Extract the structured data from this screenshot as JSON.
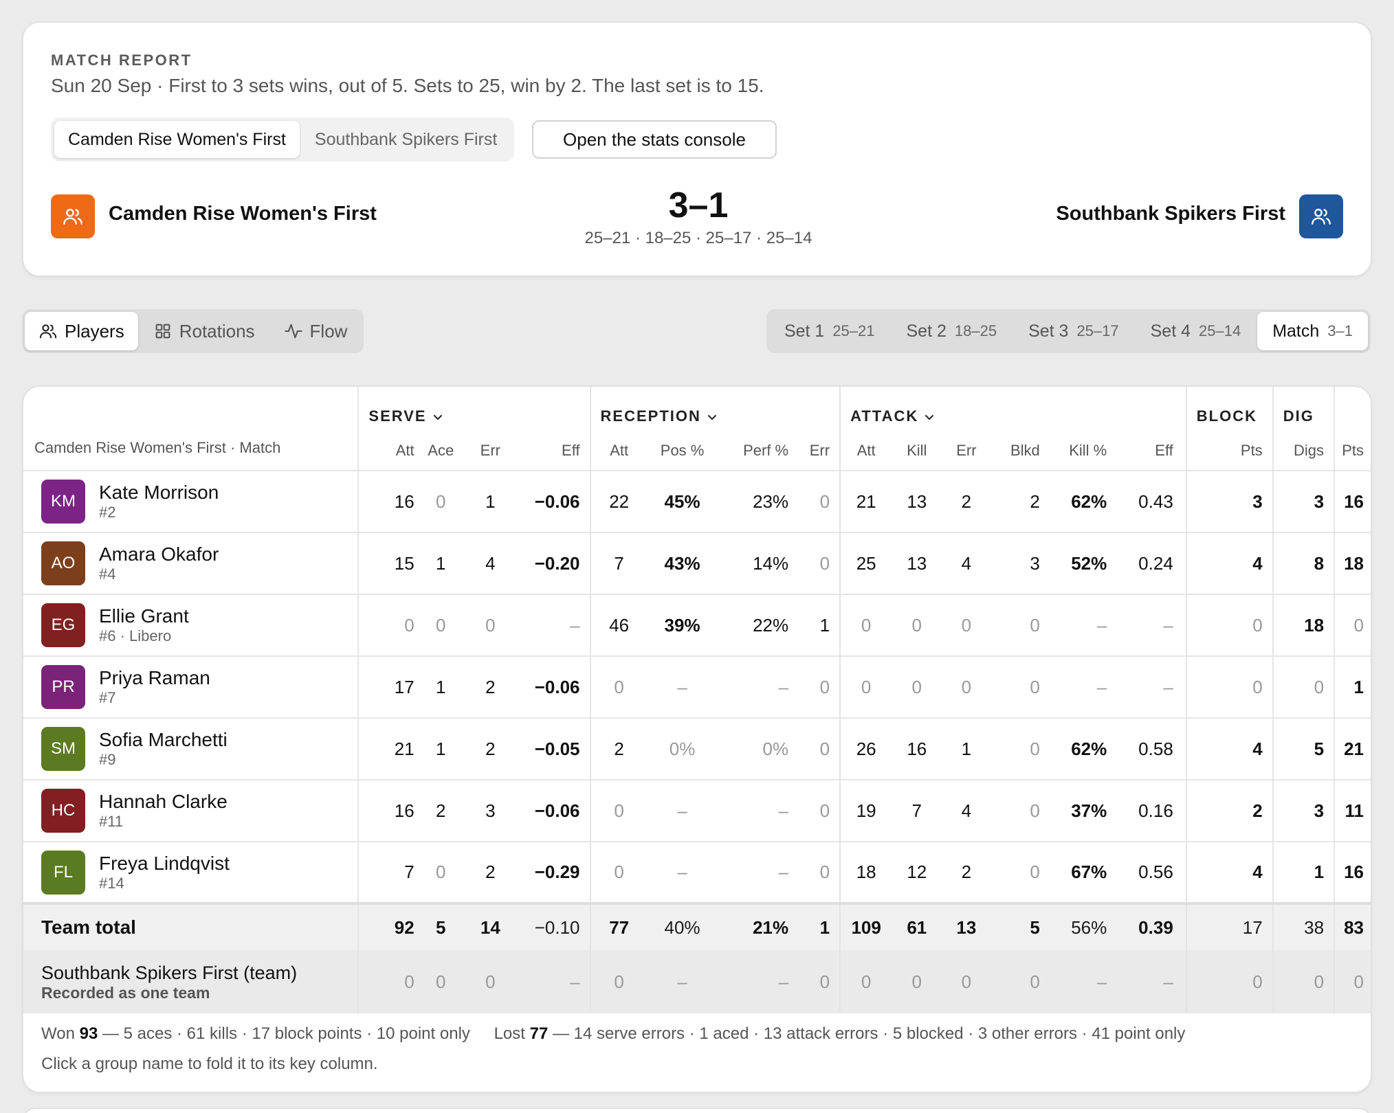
{
  "header": {
    "eyebrow": "MATCH REPORT",
    "subtitle": "Sun 20 Sep · First to 3 sets wins, out of 5. Sets to 25, win by 2. The last set is to 15.",
    "team_toggle": [
      "Camden Rise Women's First",
      "Southbank Spikers First"
    ],
    "console_button": "Open the stats console",
    "home_team": "Camden Rise Women's First",
    "away_team": "Southbank Spikers First",
    "score": "3–1",
    "set_scores": "25–21 · 18–25 · 25–17 · 25–14",
    "home_color": "#ef6a16",
    "away_color": "#1f569c"
  },
  "view_tabs": [
    {
      "label": "Players",
      "icon": "users-icon"
    },
    {
      "label": "Rotations",
      "icon": "grid-icon"
    },
    {
      "label": "Flow",
      "icon": "activity-icon"
    }
  ],
  "set_tabs": [
    {
      "label": "Set 1",
      "score": "25–21"
    },
    {
      "label": "Set 2",
      "score": "18–25"
    },
    {
      "label": "Set 3",
      "score": "25–17"
    },
    {
      "label": "Set 4",
      "score": "25–14"
    },
    {
      "label": "Match",
      "score": "3–1"
    }
  ],
  "table": {
    "context": "Camden Rise Women's First · Match",
    "groups": {
      "serve": "SERVE",
      "reception": "RECEPTION",
      "attack": "ATTACK",
      "block": "BLOCK",
      "dig": "DIG"
    },
    "columns": [
      "Att",
      "Ace",
      "Err",
      "Eff",
      "Att",
      "Pos %",
      "Perf %",
      "Err",
      "Att",
      "Kill",
      "Err",
      "Blkd",
      "Kill %",
      "Eff",
      "Pts",
      "Digs",
      "Pts"
    ],
    "players": [
      {
        "initials": "KM",
        "name": "Kate Morrison",
        "number": "#2",
        "color": "#7b2486",
        "stats": [
          "16",
          "0",
          "1",
          "−0.06",
          "22",
          "45%",
          "23%",
          "0",
          "21",
          "13",
          "2",
          "2",
          "62%",
          "0.43",
          "3",
          "3",
          "16"
        ]
      },
      {
        "initials": "AO",
        "name": "Amara Okafor",
        "number": "#4",
        "color": "#7c3f1c",
        "stats": [
          "15",
          "1",
          "4",
          "−0.20",
          "7",
          "43%",
          "14%",
          "0",
          "25",
          "13",
          "4",
          "3",
          "52%",
          "0.24",
          "4",
          "8",
          "18"
        ]
      },
      {
        "initials": "EG",
        "name": "Ellie Grant",
        "number": "#6 · Libero",
        "color": "#80211f",
        "stats": [
          "0",
          "0",
          "0",
          "–",
          "46",
          "39%",
          "22%",
          "1",
          "0",
          "0",
          "0",
          "0",
          "–",
          "–",
          "0",
          "18",
          "0"
        ]
      },
      {
        "initials": "PR",
        "name": "Priya Raman",
        "number": "#7",
        "color": "#7b2378",
        "stats": [
          "17",
          "1",
          "2",
          "−0.06",
          "0",
          "–",
          "–",
          "0",
          "0",
          "0",
          "0",
          "0",
          "–",
          "–",
          "0",
          "0",
          "1"
        ]
      },
      {
        "initials": "SM",
        "name": "Sofia Marchetti",
        "number": "#9",
        "color": "#5c7a21",
        "stats": [
          "21",
          "1",
          "2",
          "−0.05",
          "2",
          "0%",
          "0%",
          "0",
          "26",
          "16",
          "1",
          "0",
          "62%",
          "0.58",
          "4",
          "5",
          "21"
        ]
      },
      {
        "initials": "HC",
        "name": "Hannah Clarke",
        "number": "#11",
        "color": "#821f22",
        "stats": [
          "16",
          "2",
          "3",
          "−0.06",
          "0",
          "–",
          "–",
          "0",
          "19",
          "7",
          "4",
          "0",
          "37%",
          "0.16",
          "2",
          "3",
          "11"
        ]
      },
      {
        "initials": "FL",
        "name": "Freya Lindqvist",
        "number": "#14",
        "color": "#5a7b22",
        "stats": [
          "7",
          "0",
          "2",
          "−0.29",
          "0",
          "–",
          "–",
          "0",
          "18",
          "12",
          "2",
          "0",
          "67%",
          "0.56",
          "4",
          "1",
          "16"
        ]
      }
    ],
    "total": {
      "label": "Team total",
      "stats": [
        "92",
        "5",
        "14",
        "−0.10",
        "77",
        "40%",
        "21%",
        "1",
        "109",
        "61",
        "13",
        "5",
        "56%",
        "0.39",
        "17",
        "38",
        "83"
      ]
    },
    "opponent": {
      "label": "Southbank Spikers First (team)",
      "sublabel": "Recorded as one team",
      "stats": [
        "0",
        "0",
        "0",
        "–",
        "0",
        "–",
        "–",
        "0",
        "0",
        "0",
        "0",
        "0",
        "–",
        "–",
        "0",
        "0",
        "0"
      ]
    }
  },
  "summary": {
    "won_label": "Won",
    "won_value": "93",
    "won_detail": "— 5 aces · 61 kills · 17 block points · 10 point only",
    "lost_label": "Lost",
    "lost_value": "77",
    "lost_detail": "— 14 serve errors · 1 aced · 13 attack errors · 5 blocked · 3 other errors · 41 point only",
    "hint": "Click a group name to fold it to its key column."
  }
}
